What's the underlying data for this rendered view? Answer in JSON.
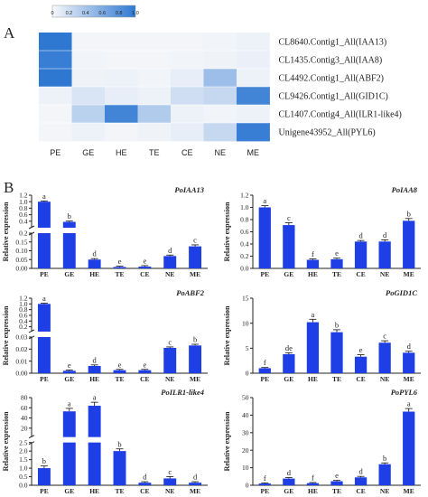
{
  "figure": {
    "panel_a_label": "A",
    "panel_b_label": "B",
    "y_axis_label": "Relative expression"
  },
  "colors": {
    "bar": "#1f3fe6",
    "axis": "#222222",
    "heat_high": "#2e78d2",
    "heat_low": "#f7f8fa"
  },
  "heatmap": {
    "colorbar_ticks": [
      "0",
      "0.2",
      "0.4",
      "0.6",
      "0.8",
      "1.0"
    ],
    "columns": [
      "PE",
      "GE",
      "HE",
      "TE",
      "CE",
      "NE",
      "ME"
    ],
    "rows": [
      {
        "label": "CL8640.Contig1_All(IAA13)",
        "values": [
          1.0,
          0.02,
          0.02,
          0.02,
          0.02,
          0.03,
          0.05
        ]
      },
      {
        "label": "CL1435.Contig3_All(IAA8)",
        "values": [
          0.95,
          0.03,
          0.02,
          0.02,
          0.03,
          0.04,
          0.06
        ]
      },
      {
        "label": "CL4492.Contig1_All(ABF2)",
        "values": [
          1.0,
          0.04,
          0.05,
          0.03,
          0.08,
          0.45,
          0.05
        ]
      },
      {
        "label": "CL9426.Contig1_All(GID1C)",
        "values": [
          0.05,
          0.15,
          0.08,
          0.05,
          0.2,
          0.25,
          0.9
        ]
      },
      {
        "label": "CL1407.Contig4_All(ILR1-like4)",
        "values": [
          0.02,
          0.3,
          0.9,
          0.35,
          0.05,
          0.03,
          0.05
        ]
      },
      {
        "label": "Unigene43952_All(PYL6)",
        "values": [
          0.02,
          0.05,
          0.02,
          0.04,
          0.08,
          0.25,
          0.95
        ]
      }
    ]
  },
  "chart_data": [
    {
      "type": "bar",
      "title": "PoIAA13",
      "ylabel": "Relative expression",
      "categories": [
        "PE",
        "GE",
        "HE",
        "TE",
        "CE",
        "NE",
        "ME"
      ],
      "values": [
        1.0,
        0.38,
        0.05,
        0.008,
        0.01,
        0.07,
        0.125
      ],
      "errors": [
        0.01,
        0.01,
        0.003,
        0.002,
        0.003,
        0.003,
        0.006
      ],
      "letters": [
        "a",
        "b",
        "d",
        "e",
        "e",
        "d",
        "c"
      ],
      "ylim": [
        0,
        1.2
      ],
      "axis_break": {
        "lower": [
          0,
          0.2
        ],
        "upper": [
          0.2,
          1.2
        ]
      },
      "y_ticks": [
        "1.2",
        "1.0",
        "0.8",
        "0.6",
        "0.4",
        "0.2",
        "0.15",
        "0.10",
        "0.05",
        "0.00"
      ]
    },
    {
      "type": "bar",
      "title": "PoIAA8",
      "ylabel": "Relative expression",
      "categories": [
        "PE",
        "GE",
        "HE",
        "TE",
        "CE",
        "NE",
        "ME"
      ],
      "values": [
        1.0,
        0.71,
        0.14,
        0.15,
        0.44,
        0.44,
        0.78
      ],
      "errors": [
        0.02,
        0.03,
        0.01,
        0.01,
        0.01,
        0.02,
        0.03
      ],
      "letters": [
        "a",
        "c",
        "f",
        "e",
        "d",
        "d",
        "b"
      ],
      "ylim": [
        0,
        1.2
      ],
      "y_ticks": [
        "0.0",
        "0.2",
        "0.4",
        "0.6",
        "0.8",
        "1.0",
        "1.2"
      ]
    },
    {
      "type": "bar",
      "title": "PoABF2",
      "ylabel": "Relative expression",
      "categories": [
        "PE",
        "GE",
        "HE",
        "TE",
        "CE",
        "NE",
        "ME"
      ],
      "values": [
        1.0,
        0.002,
        0.006,
        0.0025,
        0.0025,
        0.021,
        0.023
      ],
      "errors": [
        0.01,
        0.0003,
        0.0005,
        0.0003,
        0.0003,
        0.0004,
        0.0006
      ],
      "letters": [
        "a",
        "e",
        "d",
        "e",
        "e",
        "c",
        "b"
      ],
      "ylim": [
        0,
        1.2
      ],
      "axis_break": {
        "lower": [
          0,
          0.03
        ],
        "upper": [
          0.03,
          1.2
        ]
      },
      "y_ticks": [
        "1.2",
        "1.0",
        "0.8",
        "0.6",
        "0.4",
        "0.2",
        "0.03",
        "0.02",
        "0.01",
        "0.00"
      ]
    },
    {
      "type": "bar",
      "title": "PoGID1C",
      "ylabel": "Relative expression",
      "categories": [
        "PE",
        "GE",
        "HE",
        "TE",
        "CE",
        "NE",
        "ME"
      ],
      "values": [
        1.0,
        3.8,
        10.2,
        8.2,
        3.3,
        6.1,
        4.1
      ],
      "errors": [
        0.05,
        0.2,
        0.5,
        0.4,
        0.3,
        0.3,
        0.2
      ],
      "letters": [
        "f",
        "de",
        "a",
        "b",
        "e",
        "c",
        "d"
      ],
      "ylim": [
        0,
        15
      ],
      "y_ticks": [
        "0",
        "5",
        "10",
        "15"
      ]
    },
    {
      "type": "bar",
      "title": "PoILR1-like4",
      "ylabel": "Relative expression",
      "categories": [
        "PE",
        "GE",
        "HE",
        "TE",
        "CE",
        "NE",
        "ME"
      ],
      "values": [
        1.0,
        53,
        64,
        2.0,
        0.15,
        0.4,
        0.15
      ],
      "errors": [
        0.1,
        5,
        6,
        0.1,
        0.03,
        0.08,
        0.03
      ],
      "letters": [
        "b",
        "a",
        "a",
        "b",
        "d",
        "c",
        "d"
      ],
      "ylim": [
        0,
        80
      ],
      "axis_break": {
        "lower": [
          0,
          2.5
        ],
        "upper": [
          2.5,
          80
        ]
      },
      "y_ticks": [
        "80",
        "60",
        "40",
        "20",
        "2.5",
        "2.0",
        "1.5",
        "1.0",
        "0.5",
        "0.0"
      ]
    },
    {
      "type": "bar",
      "title": "PoPYL6",
      "ylabel": "Relative expression",
      "categories": [
        "PE",
        "GE",
        "HE",
        "TE",
        "CE",
        "NE",
        "ME"
      ],
      "values": [
        1.0,
        3.8,
        1.2,
        2.3,
        4.5,
        12.0,
        42.0
      ],
      "errors": [
        0.1,
        0.3,
        0.1,
        0.2,
        0.3,
        0.5,
        1.5
      ],
      "letters": [
        "f",
        "d",
        "f",
        "e",
        "d",
        "b",
        "a"
      ],
      "ylim": [
        0,
        50
      ],
      "y_ticks": [
        "0",
        "10",
        "20",
        "30",
        "40",
        "50"
      ]
    }
  ]
}
